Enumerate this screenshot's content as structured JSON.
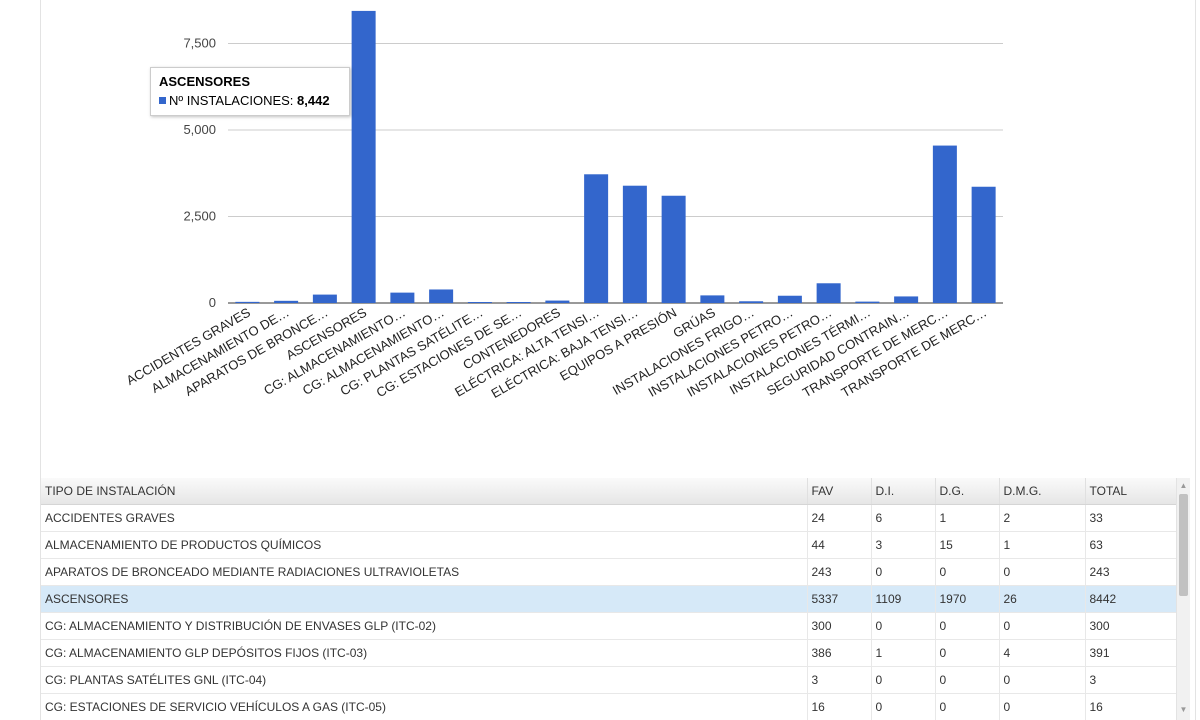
{
  "chart_data": {
    "type": "bar",
    "categories": [
      "ACCIDENTES GRAVES",
      "ALMACENAMIENTO DE…",
      "APARATOS DE BRONCE…",
      "ASCENSORES",
      "CG: ALMACENAMIENTO…",
      "CG: ALMACENAMIENTO…",
      "CG: PLANTAS SATÉLITE…",
      "CG: ESTACIONES DE SE…",
      "CONTENEDORES",
      "ELÉCTRICA: ALTA TENSI…",
      "ELÉCTRICA: BAJA TENSI…",
      "EQUIPOS A PRESIÓN",
      "GRÚAS",
      "INSTALACIONES FRIGO…",
      "INSTALACIONES PETRO…",
      "INSTALACIONES PETRO…",
      "INSTALACIONES TÉRMI…",
      "SEGURIDAD CONTRAIN…",
      "TRANSPORTE DE MERC…",
      "TRANSPORTE DE MERC…"
    ],
    "values": [
      33,
      63,
      243,
      8442,
      300,
      391,
      3,
      16,
      70,
      3720,
      3390,
      3100,
      220,
      50,
      210,
      570,
      40,
      190,
      4550,
      3360
    ],
    "ylim": [
      0,
      8800
    ],
    "yticks": [
      0,
      2500,
      5000,
      7500
    ],
    "ytick_labels": [
      "0",
      "2,500",
      "5,000",
      "7,500"
    ],
    "grid": true,
    "bar_color": "#3366cc"
  },
  "tooltip": {
    "title": "ASCENSORES",
    "series_label": "Nº INSTALACIONES:",
    "value": "8,442"
  },
  "table": {
    "headers": [
      "TIPO DE INSTALACIÓN",
      "FAV",
      "D.I.",
      "D.G.",
      "D.M.G.",
      "TOTAL"
    ],
    "rows": [
      [
        "ACCIDENTES GRAVES",
        "24",
        "6",
        "1",
        "2",
        "33"
      ],
      [
        "ALMACENAMIENTO DE PRODUCTOS QUÍMICOS",
        "44",
        "3",
        "15",
        "1",
        "63"
      ],
      [
        "APARATOS DE BRONCEADO MEDIANTE RADIACIONES ULTRAVIOLETAS",
        "243",
        "0",
        "0",
        "0",
        "243"
      ],
      [
        "ASCENSORES",
        "5337",
        "1109",
        "1970",
        "26",
        "8442"
      ],
      [
        "CG: ALMACENAMIENTO Y DISTRIBUCIÓN DE ENVASES GLP (ITC-02)",
        "300",
        "0",
        "0",
        "0",
        "300"
      ],
      [
        "CG: ALMACENAMIENTO GLP DEPÓSITOS FIJOS (ITC-03)",
        "386",
        "1",
        "0",
        "4",
        "391"
      ],
      [
        "CG: PLANTAS SATÉLITES GNL (ITC-04)",
        "3",
        "0",
        "0",
        "0",
        "3"
      ],
      [
        "CG: ESTACIONES DE SERVICIO VEHÍCULOS A GAS (ITC-05)",
        "16",
        "0",
        "0",
        "0",
        "16"
      ]
    ],
    "selected_row": 3
  }
}
